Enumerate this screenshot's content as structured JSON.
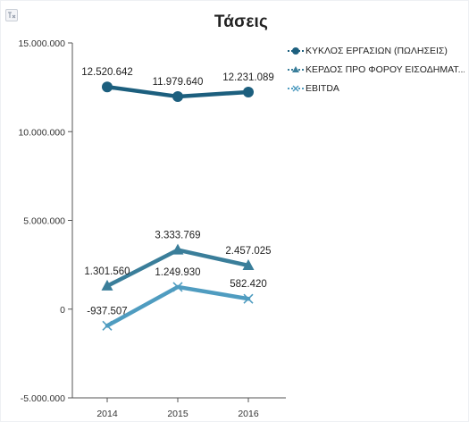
{
  "menu": {
    "icon": "chart-menu-icon"
  },
  "colors": {
    "series": [
      "#1c5f7e",
      "#3a7e9a",
      "#4f9cc0"
    ],
    "axis": "#555555"
  },
  "chart_data": {
    "type": "line",
    "title": "Τάσεις",
    "x": [
      "2014",
      "2015",
      "2016"
    ],
    "ylim": [
      -5000000,
      15000000
    ],
    "yticks": [
      -5000000,
      0,
      5000000,
      10000000,
      15000000
    ],
    "ytick_labels": [
      "-5.000.000",
      "0",
      "5.000.000",
      "10.000.000",
      "15.000.000"
    ],
    "grid": false,
    "legend": "top-right",
    "series": [
      {
        "name": "ΚΥΚΛΟΣ ΕΡΓΑΣΙΩΝ (ΠΩΛΗΣΕΙΣ)",
        "marker": "circle",
        "values": [
          12520642,
          11979640,
          12231089
        ],
        "labels": [
          "12.520.642",
          "11.979.640",
          "12.231.089"
        ]
      },
      {
        "name": "ΚΕΡΔΟΣ ΠΡΟ ΦΟΡΟΥ ΕΙΣΟΔΗΜΑΤ...",
        "marker": "triangle",
        "values": [
          1301560,
          3333769,
          2457025
        ],
        "labels": [
          "1.301.560",
          "3.333.769",
          "2.457.025"
        ]
      },
      {
        "name": "EBITDA",
        "marker": "x",
        "values": [
          -937507,
          1249930,
          582420
        ],
        "labels": [
          "-937.507",
          "1.249.930",
          "582.420"
        ]
      }
    ]
  }
}
